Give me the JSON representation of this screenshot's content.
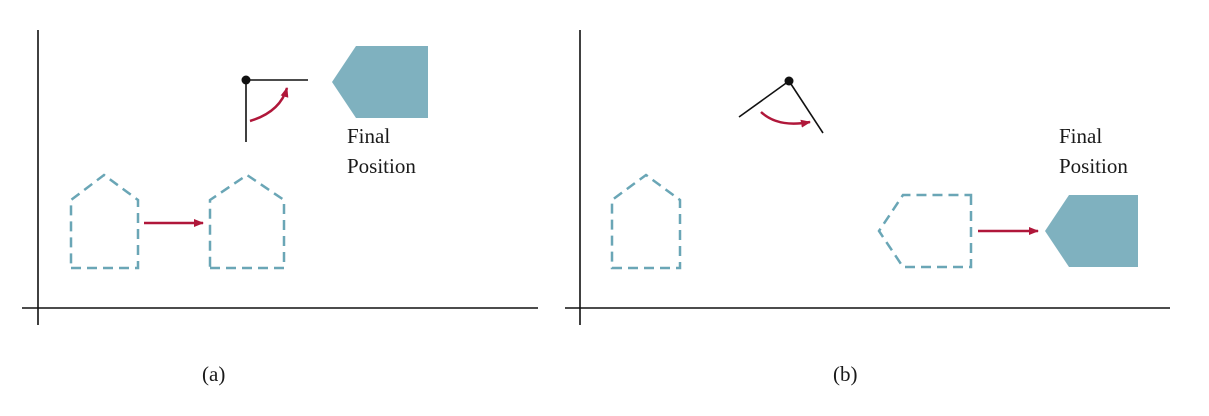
{
  "colors": {
    "shape_fill": "#7fb1bf",
    "dashed_outline": "#6aa6b6",
    "arrow": "#b0173a",
    "axis": "#111111"
  },
  "panel_a": {
    "caption": "(a)",
    "final_label_line1": "Final",
    "final_label_line2": "Position"
  },
  "panel_b": {
    "caption": "(b)",
    "final_label_line1": "Final",
    "final_label_line2": "Position"
  }
}
